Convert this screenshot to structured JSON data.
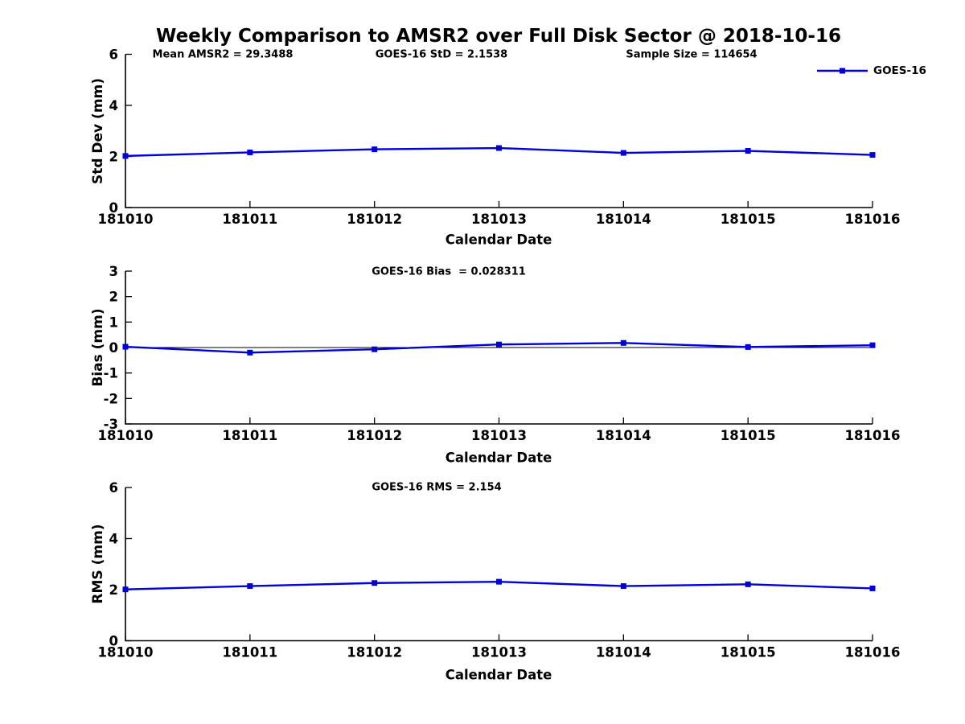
{
  "title": "Weekly Comparison to AMSR2 over Full Disk Sector @ 2018-10-16",
  "annotations": {
    "mean_amsr2": "Mean AMSR2 = 29.3488",
    "goes16_std": "GOES-16 StD = 2.1538",
    "sample_size": "Sample Size = 114654",
    "goes16_bias": "GOES-16 Bias  = 0.028311",
    "goes16_rms": "GOES-16 RMS = 2.154"
  },
  "legend": {
    "label": "GOES-16",
    "position": "top-right"
  },
  "colors": {
    "line": "#0000d9",
    "axis": "#000000",
    "zero_line": "#000000"
  },
  "chart_data": [
    {
      "type": "line",
      "title": "",
      "xlabel": "Calendar Date",
      "ylabel": "Std Dev (mm)",
      "categories": [
        "181010",
        "181011",
        "181012",
        "181013",
        "181014",
        "181015",
        "181016"
      ],
      "series": [
        {
          "name": "GOES-16",
          "values": [
            2.02,
            2.16,
            2.28,
            2.33,
            2.14,
            2.22,
            2.06
          ]
        }
      ],
      "ylim": [
        0,
        6
      ],
      "yticks": [
        0,
        2,
        4,
        6
      ],
      "grid": false,
      "zero_line": false,
      "annotations": [
        "Mean AMSR2 = 29.3488",
        "GOES-16 StD = 2.1538",
        "Sample Size = 114654"
      ],
      "legend_entries": [
        "GOES-16"
      ]
    },
    {
      "type": "line",
      "title": "GOES-16 Bias  = 0.028311",
      "xlabel": "Calendar Date",
      "ylabel": "Bias (mm)",
      "categories": [
        "181010",
        "181011",
        "181012",
        "181013",
        "181014",
        "181015",
        "181016"
      ],
      "series": [
        {
          "name": "GOES-16",
          "values": [
            0.03,
            -0.2,
            -0.07,
            0.12,
            0.18,
            0.02,
            0.09
          ]
        }
      ],
      "ylim": [
        -3,
        3
      ],
      "yticks": [
        3,
        2,
        1,
        0,
        -1,
        -2,
        -3
      ],
      "grid": false,
      "zero_line": true,
      "annotations": [
        "GOES-16 Bias  = 0.028311"
      ],
      "legend_entries": []
    },
    {
      "type": "line",
      "title": "GOES-16 RMS = 2.154",
      "xlabel": "Calendar Date",
      "ylabel": "RMS (mm)",
      "categories": [
        "181010",
        "181011",
        "181012",
        "181013",
        "181014",
        "181015",
        "181016"
      ],
      "series": [
        {
          "name": "GOES-16",
          "values": [
            2.01,
            2.14,
            2.26,
            2.31,
            2.14,
            2.21,
            2.05
          ]
        }
      ],
      "ylim": [
        0,
        6
      ],
      "yticks": [
        0,
        2,
        4,
        6
      ],
      "grid": false,
      "zero_line": false,
      "annotations": [
        "GOES-16 RMS = 2.154"
      ],
      "legend_entries": []
    }
  ]
}
